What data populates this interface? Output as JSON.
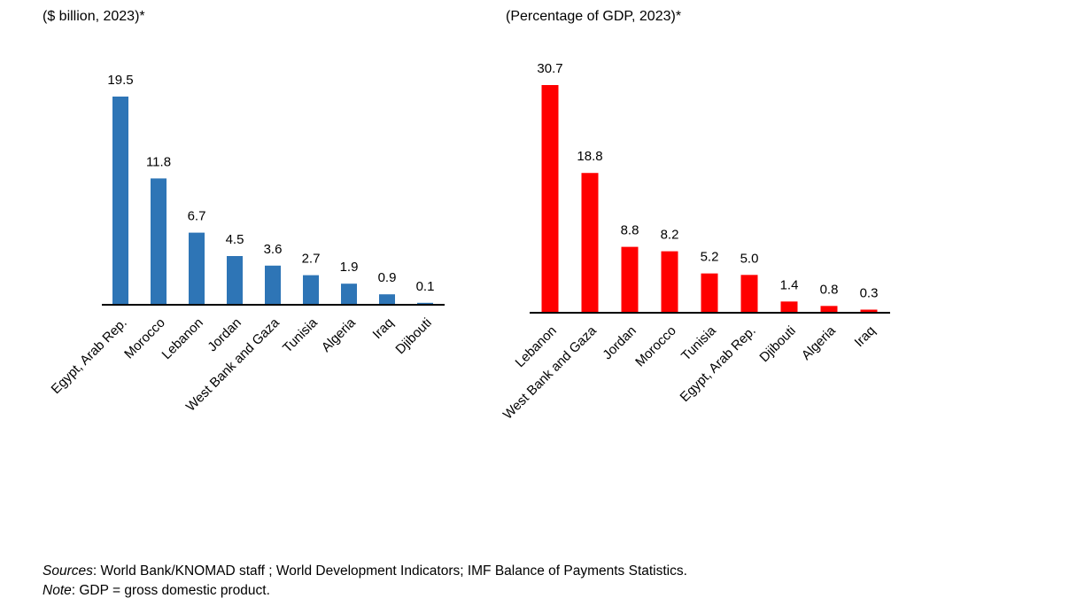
{
  "chart_data": [
    {
      "type": "bar",
      "title": "",
      "subtitle": "($ billion, 2023)*",
      "xlabel": "",
      "ylabel": "",
      "color": "#2E75B6",
      "categories": [
        "Egypt, Arab Rep.",
        "Morocco",
        "Lebanon",
        "Jordan",
        "West Bank and Gaza",
        "Tunisia",
        "Algeria",
        "Iraq",
        "Djibouti"
      ],
      "values": [
        19.5,
        11.8,
        6.7,
        4.5,
        3.6,
        2.7,
        1.9,
        0.9,
        0.1
      ],
      "data_labels": [
        "19.5",
        "11.8",
        "6.7",
        "4.5",
        "3.6",
        "2.7",
        "1.9",
        "0.9",
        "0.1"
      ],
      "ylim": [
        0,
        19.5
      ],
      "grid": false,
      "legend": "none"
    },
    {
      "type": "bar",
      "title": "",
      "subtitle": "(Percentage of GDP, 2023)*",
      "xlabel": "",
      "ylabel": "",
      "color": "#FF0000",
      "categories": [
        "Lebanon",
        "West Bank and Gaza",
        "Jordan",
        "Morocco",
        "Tunisia",
        "Egypt, Arab Rep.",
        "Djibouti",
        "Algeria",
        "Iraq"
      ],
      "values": [
        30.7,
        18.8,
        8.8,
        8.2,
        5.2,
        5.0,
        1.4,
        0.8,
        0.3
      ],
      "data_labels": [
        "30.7",
        "18.8",
        "8.8",
        "8.2",
        "5.2",
        "5.0",
        "1.4",
        "0.8",
        "0.3"
      ],
      "ylim": [
        0,
        30.7
      ],
      "grid": false,
      "legend": "none"
    }
  ],
  "footer": {
    "sources_label": "Sources",
    "sources_text": ": World Bank/KNOMAD staff ; World Development Indicators; IMF Balance of Payments Statistics.",
    "note_label": "Note",
    "note_text": ": GDP = gross domestic product."
  }
}
